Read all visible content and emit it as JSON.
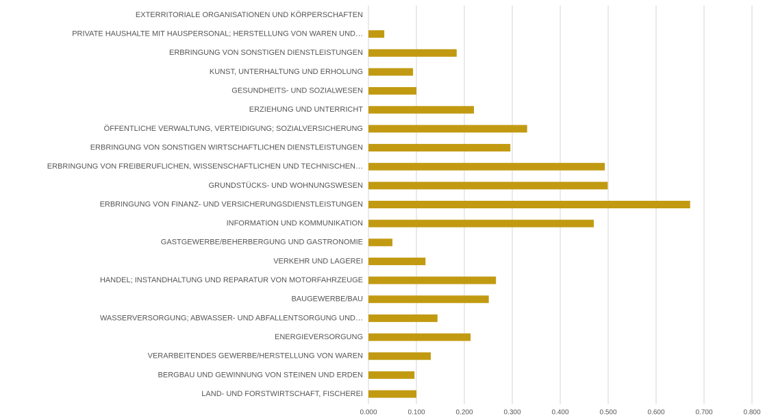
{
  "chart_data": {
    "type": "hbar",
    "categories": [
      "EXTERRITORIALE ORGANISATIONEN UND KÖRPERSCHAFTEN",
      "PRIVATE HAUSHALTE MIT HAUSPERSONAL; HERSTELLUNG VON WAREN UND…",
      "ERBRINGUNG VON SONSTIGEN DIENSTLEISTUNGEN",
      "KUNST, UNTERHALTUNG UND ERHOLUNG",
      "GESUNDHEITS- UND SOZIALWESEN",
      "ERZIEHUNG UND UNTERRICHT",
      "ÖFFENTLICHE VERWALTUNG, VERTEIDIGUNG; SOZIALVERSICHERUNG",
      "ERBRINGUNG VON SONSTIGEN WIRTSCHAFTLICHEN DIENSTLEISTUNGEN",
      "ERBRINGUNG VON FREIBERUFLICHEN, WISSENSCHAFTLICHEN UND TECHNISCHEN…",
      "GRUNDSTÜCKS- UND WOHNUNGSWESEN",
      "ERBRINGUNG VON FINANZ- UND VERSICHERUNGSDIENSTLEISTUNGEN",
      "INFORMATION UND KOMMUNIKATION",
      "GASTGEWERBE/BEHERBERGUNG UND GASTRONOMIE",
      "VERKEHR UND LAGEREI",
      "HANDEL; INSTANDHALTUNG UND REPARATUR VON MOTORFAHRZEUGE",
      "BAUGEWERBE/BAU",
      "WASSERVERSORGUNG; ABWASSER- UND ABFALLENTSORGUNG UND…",
      "ENERGIEVERSORGUNG",
      "VERARBEITENDES GEWERBE/HERSTELLUNG VON WAREN",
      "BERGBAU UND GEWINNUNG VON STEINEN UND ERDEN",
      "LAND- UND FORSTWIRTSCHAFT, FISCHEREI"
    ],
    "values": [
      0,
      0.033,
      0.184,
      0.093,
      0.1,
      0.22,
      0.331,
      0.296,
      0.493,
      0.499,
      0.671,
      0.47,
      0.05,
      0.119,
      0.266,
      0.251,
      0.144,
      0.213,
      0.13,
      0.096,
      0.1
    ],
    "color": "#c29a12",
    "xlim": [
      0,
      0.8
    ],
    "xticks": [
      {
        "value": 0,
        "label": "0.000"
      },
      {
        "value": 0.1,
        "label": "0.100"
      },
      {
        "value": 0.2,
        "label": "0.200"
      },
      {
        "value": 0.3,
        "label": "0.300"
      },
      {
        "value": 0.4,
        "label": "0.400"
      },
      {
        "value": 0.5,
        "label": "0.500"
      },
      {
        "value": 0.6,
        "label": "0.600"
      },
      {
        "value": 0.7,
        "label": "0.700"
      },
      {
        "value": 0.8,
        "label": "0.800"
      }
    ],
    "grid": true
  }
}
